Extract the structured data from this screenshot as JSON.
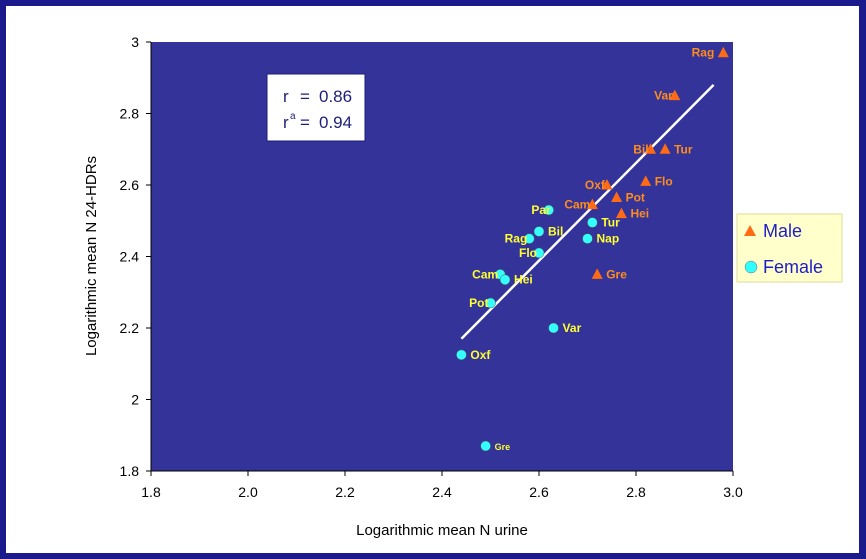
{
  "chart_data": {
    "type": "scatter",
    "xlabel": "Logarithmic mean N urine",
    "ylabel": "Logarithmic mean N 24-HDRs",
    "xlim": [
      1.8,
      3.0
    ],
    "ylim": [
      1.8,
      3.0
    ],
    "x_ticks": [
      "1.8",
      "2.0",
      "2.2",
      "2.4",
      "2.6",
      "2.8",
      "3.0"
    ],
    "y_ticks": [
      "1.8",
      "2",
      "2.2",
      "2.4",
      "2.6",
      "2.8",
      "3"
    ],
    "grid": false,
    "legend_position": "right",
    "background_color": "#333399",
    "stats": {
      "r_label": "r",
      "r_value": "0.86",
      "r2_label": "r",
      "r2_sup": "a",
      "r2_value": "0.94",
      "equals": "="
    },
    "regression_line": {
      "from": [
        2.44,
        2.17
      ],
      "to": [
        2.96,
        2.88
      ],
      "color": "#ffffff"
    },
    "series": [
      {
        "name": "Male",
        "marker": "triangle",
        "color": "#ff6a14",
        "label_color": "#ff8c1e",
        "points": [
          {
            "x": 2.98,
            "y": 2.97,
            "label": "Rag"
          },
          {
            "x": 2.88,
            "y": 2.85,
            "label": "Var"
          },
          {
            "x": 2.86,
            "y": 2.7,
            "label": "Tur"
          },
          {
            "x": 2.83,
            "y": 2.7,
            "label": "Bil"
          },
          {
            "x": 2.82,
            "y": 2.61,
            "label": "Flo"
          },
          {
            "x": 2.74,
            "y": 2.6,
            "label": "Oxf"
          },
          {
            "x": 2.76,
            "y": 2.565,
            "label": "Pot"
          },
          {
            "x": 2.71,
            "y": 2.545,
            "label": "Cam"
          },
          {
            "x": 2.77,
            "y": 2.52,
            "label": "Hei"
          },
          {
            "x": 2.72,
            "y": 2.35,
            "label": "Gre"
          }
        ]
      },
      {
        "name": "Female",
        "marker": "circle",
        "color": "#33ffff",
        "label_color": "#ffff33",
        "points": [
          {
            "x": 2.62,
            "y": 2.53,
            "label": "Par"
          },
          {
            "x": 2.71,
            "y": 2.495,
            "label": "Tur"
          },
          {
            "x": 2.6,
            "y": 2.47,
            "label": "Bil"
          },
          {
            "x": 2.58,
            "y": 2.45,
            "label": "Rag"
          },
          {
            "x": 2.7,
            "y": 2.45,
            "label": "Nap"
          },
          {
            "x": 2.6,
            "y": 2.41,
            "label": "Flo"
          },
          {
            "x": 2.52,
            "y": 2.35,
            "label": "Cam"
          },
          {
            "x": 2.53,
            "y": 2.335,
            "label": "Hei"
          },
          {
            "x": 2.5,
            "y": 2.27,
            "label": "Pot"
          },
          {
            "x": 2.63,
            "y": 2.2,
            "label": "Var"
          },
          {
            "x": 2.44,
            "y": 2.125,
            "label": "Oxf"
          },
          {
            "x": 2.49,
            "y": 1.87,
            "label": "Gre"
          }
        ]
      }
    ]
  }
}
